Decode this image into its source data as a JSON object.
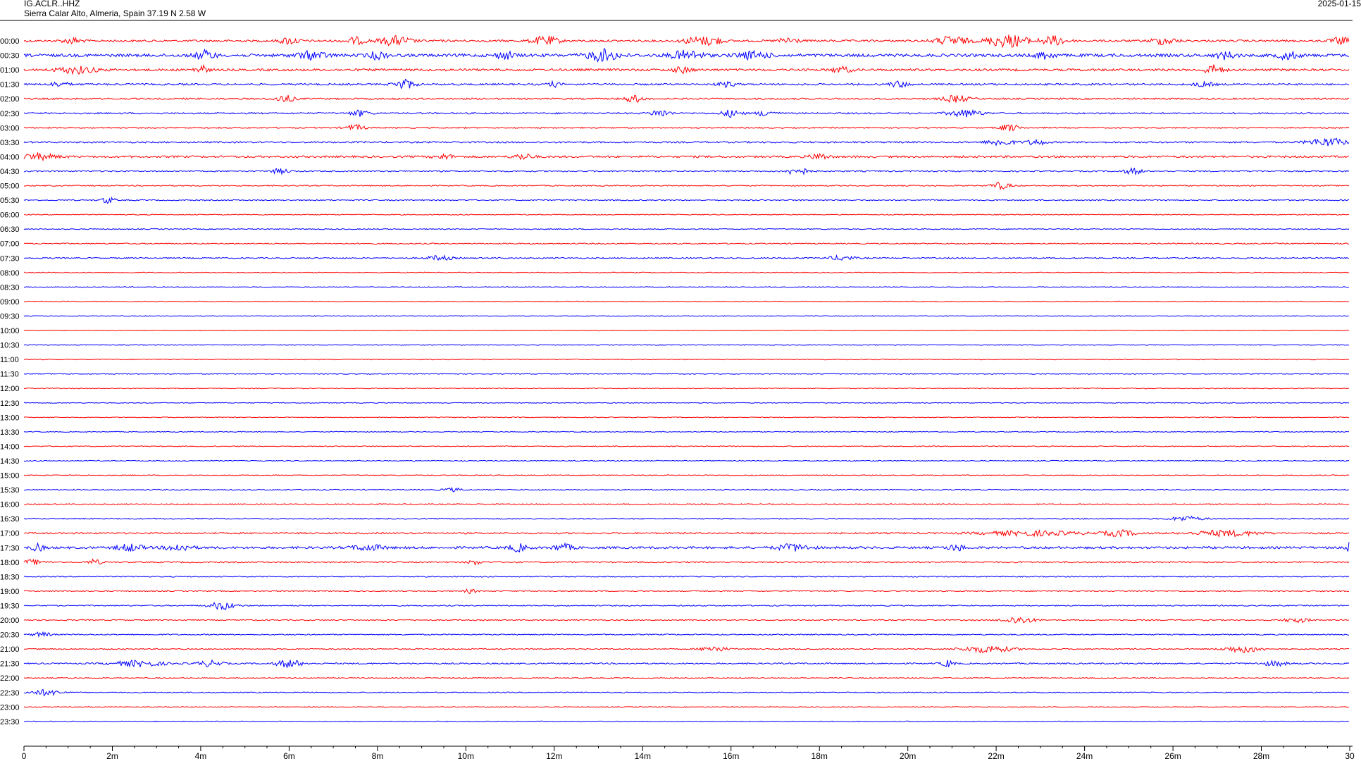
{
  "header": {
    "station": "IG.ACLR..HHZ",
    "location": "Sierra Calar Alto, Almeria, Spain  37.19 N 2.58 W",
    "date": "2025-01-15"
  },
  "colors": {
    "odd": "#ff0000",
    "even": "#0000ff",
    "border": "#000000"
  },
  "chart_data": {
    "type": "line",
    "title": "IG.ACLR..HHZ",
    "subtitle": "Sierra Calar Alto, Almeria, Spain  37.19 N 2.58 W",
    "xlabel": "",
    "ylabel": "",
    "xlim": [
      0,
      30
    ],
    "x_ticks": [
      "0",
      "2m",
      "4m",
      "6m",
      "8m",
      "10m",
      "12m",
      "14m",
      "16m",
      "18m",
      "20m",
      "22m",
      "24m",
      "26m",
      "28m",
      "30"
    ],
    "trace_labels": [
      "00:00",
      "00:30",
      "01:00",
      "01:30",
      "02:00",
      "02:30",
      "03:00",
      "03:30",
      "04:00",
      "04:30",
      "05:00",
      "05:30",
      "06:00",
      "06:30",
      "07:00",
      "07:30",
      "08:00",
      "08:30",
      "09:00",
      "09:30",
      "10:00",
      "10:30",
      "11:00",
      "11:30",
      "12:00",
      "12:30",
      "13:00",
      "13:30",
      "14:00",
      "14:30",
      "15:00",
      "15:30",
      "16:00",
      "16:30",
      "17:00",
      "17:30",
      "18:00",
      "18:30",
      "19:00",
      "19:30",
      "20:00",
      "20:30",
      "21:00",
      "21:30",
      "22:00",
      "22:30",
      "23:00",
      "23:30"
    ],
    "trace_colors": [
      "red",
      "blue"
    ],
    "noise_level": [
      0.9,
      1.3,
      1.0,
      0.8,
      0.7,
      0.7,
      0.6,
      0.7,
      0.9,
      0.6,
      0.5,
      0.5,
      0.4,
      0.45,
      0.5,
      0.55,
      0.35,
      0.35,
      0.35,
      0.35,
      0.35,
      0.35,
      0.35,
      0.35,
      0.35,
      0.35,
      0.35,
      0.35,
      0.4,
      0.4,
      0.4,
      0.45,
      0.5,
      0.5,
      0.7,
      1.0,
      0.6,
      0.45,
      0.45,
      0.5,
      0.5,
      0.5,
      0.5,
      0.6,
      0.4,
      0.45,
      0.35,
      0.35
    ],
    "events": [
      {
        "trace": 0,
        "t": 1.1,
        "a": 2.5,
        "w": 0.3
      },
      {
        "trace": 0,
        "t": 6.0,
        "a": 3,
        "w": 0.3
      },
      {
        "trace": 0,
        "t": 7.5,
        "a": 3,
        "w": 0.3
      },
      {
        "trace": 0,
        "t": 8.4,
        "a": 4,
        "w": 0.5
      },
      {
        "trace": 0,
        "t": 11.8,
        "a": 4,
        "w": 0.4
      },
      {
        "trace": 0,
        "t": 15.2,
        "a": 3,
        "w": 0.4
      },
      {
        "trace": 0,
        "t": 15.6,
        "a": 3.5,
        "w": 0.3
      },
      {
        "trace": 0,
        "t": 17.3,
        "a": 3,
        "w": 0.3
      },
      {
        "trace": 0,
        "t": 21.0,
        "a": 4,
        "w": 0.5
      },
      {
        "trace": 0,
        "t": 22.0,
        "a": 3,
        "w": 0.4
      },
      {
        "trace": 0,
        "t": 22.4,
        "a": 4.5,
        "w": 0.5
      },
      {
        "trace": 0,
        "t": 23.3,
        "a": 4,
        "w": 0.4
      },
      {
        "trace": 0,
        "t": 25.8,
        "a": 3,
        "w": 0.4
      },
      {
        "trace": 0,
        "t": 29.8,
        "a": 3,
        "w": 0.3
      },
      {
        "trace": 1,
        "t": 4.1,
        "a": 4,
        "w": 0.3
      },
      {
        "trace": 1,
        "t": 6.5,
        "a": 3,
        "w": 0.5
      },
      {
        "trace": 1,
        "t": 8.0,
        "a": 3,
        "w": 0.3
      },
      {
        "trace": 1,
        "t": 10.9,
        "a": 3,
        "w": 0.3
      },
      {
        "trace": 1,
        "t": 13.1,
        "a": 5,
        "w": 0.5
      },
      {
        "trace": 1,
        "t": 15.0,
        "a": 4,
        "w": 0.5
      },
      {
        "trace": 1,
        "t": 16.5,
        "a": 3,
        "w": 0.5
      },
      {
        "trace": 1,
        "t": 23.1,
        "a": 3,
        "w": 0.3
      },
      {
        "trace": 1,
        "t": 27.2,
        "a": 3,
        "w": 0.3
      },
      {
        "trace": 1,
        "t": 28.6,
        "a": 3.5,
        "w": 0.3
      },
      {
        "trace": 2,
        "t": 1.2,
        "a": 3,
        "w": 0.6
      },
      {
        "trace": 2,
        "t": 4.0,
        "a": 4,
        "w": 0.2
      },
      {
        "trace": 2,
        "t": 14.9,
        "a": 2.5,
        "w": 0.3
      },
      {
        "trace": 2,
        "t": 18.5,
        "a": 2.5,
        "w": 0.3
      },
      {
        "trace": 2,
        "t": 26.9,
        "a": 4,
        "w": 0.3
      },
      {
        "trace": 3,
        "t": 0.8,
        "a": 2,
        "w": 0.3
      },
      {
        "trace": 3,
        "t": 8.6,
        "a": 4.5,
        "w": 0.3
      },
      {
        "trace": 3,
        "t": 12.0,
        "a": 2,
        "w": 0.2
      },
      {
        "trace": 3,
        "t": 15.9,
        "a": 2,
        "w": 0.3
      },
      {
        "trace": 3,
        "t": 19.8,
        "a": 2.5,
        "w": 0.3
      },
      {
        "trace": 3,
        "t": 26.7,
        "a": 2,
        "w": 0.3
      },
      {
        "trace": 4,
        "t": 5.9,
        "a": 3,
        "w": 0.3
      },
      {
        "trace": 4,
        "t": 13.8,
        "a": 3,
        "w": 0.3
      },
      {
        "trace": 4,
        "t": 21.1,
        "a": 3,
        "w": 0.4
      },
      {
        "trace": 5,
        "t": 7.6,
        "a": 2.5,
        "w": 0.3
      },
      {
        "trace": 5,
        "t": 14.4,
        "a": 3,
        "w": 0.3
      },
      {
        "trace": 5,
        "t": 16.0,
        "a": 3,
        "w": 0.3
      },
      {
        "trace": 5,
        "t": 16.8,
        "a": 2.5,
        "w": 0.3
      },
      {
        "trace": 5,
        "t": 21.3,
        "a": 3,
        "w": 0.5
      },
      {
        "trace": 6,
        "t": 7.5,
        "a": 2.5,
        "w": 0.3
      },
      {
        "trace": 6,
        "t": 22.3,
        "a": 3,
        "w": 0.3
      },
      {
        "trace": 7,
        "t": 22.1,
        "a": 3,
        "w": 0.4
      },
      {
        "trace": 7,
        "t": 22.9,
        "a": 2.5,
        "w": 0.3
      },
      {
        "trace": 7,
        "t": 29.5,
        "a": 3.5,
        "w": 0.6
      },
      {
        "trace": 8,
        "t": 0.3,
        "a": 2.5,
        "w": 0.6
      },
      {
        "trace": 8,
        "t": 9.5,
        "a": 2,
        "w": 0.3
      },
      {
        "trace": 8,
        "t": 11.3,
        "a": 2.5,
        "w": 0.3
      },
      {
        "trace": 8,
        "t": 18.0,
        "a": 2.5,
        "w": 0.3
      },
      {
        "trace": 9,
        "t": 5.8,
        "a": 2,
        "w": 0.3
      },
      {
        "trace": 9,
        "t": 17.5,
        "a": 4,
        "w": 0.3
      },
      {
        "trace": 9,
        "t": 25.1,
        "a": 2.5,
        "w": 0.3
      },
      {
        "trace": 10,
        "t": 22.1,
        "a": 3,
        "w": 0.3
      },
      {
        "trace": 11,
        "t": 1.9,
        "a": 3,
        "w": 0.2
      },
      {
        "trace": 15,
        "t": 9.4,
        "a": 2,
        "w": 0.4
      },
      {
        "trace": 15,
        "t": 18.5,
        "a": 2,
        "w": 0.4
      },
      {
        "trace": 31,
        "t": 9.7,
        "a": 1.5,
        "w": 0.3
      },
      {
        "trace": 33,
        "t": 26.3,
        "a": 2,
        "w": 0.5
      },
      {
        "trace": 34,
        "t": 22.8,
        "a": 2,
        "w": 1.5
      },
      {
        "trace": 34,
        "t": 24.8,
        "a": 2.5,
        "w": 0.5
      },
      {
        "trace": 34,
        "t": 27.2,
        "a": 2.5,
        "w": 1.0
      },
      {
        "trace": 35,
        "t": 0.3,
        "a": 3,
        "w": 0.2
      },
      {
        "trace": 35,
        "t": 2.4,
        "a": 3,
        "w": 0.4
      },
      {
        "trace": 35,
        "t": 3.5,
        "a": 3,
        "w": 0.4
      },
      {
        "trace": 35,
        "t": 7.8,
        "a": 2.5,
        "w": 0.5
      },
      {
        "trace": 35,
        "t": 11.2,
        "a": 3,
        "w": 0.3
      },
      {
        "trace": 35,
        "t": 12.2,
        "a": 3,
        "w": 0.3
      },
      {
        "trace": 35,
        "t": 17.4,
        "a": 3,
        "w": 0.5
      },
      {
        "trace": 35,
        "t": 21.1,
        "a": 2.5,
        "w": 0.3
      },
      {
        "trace": 35,
        "t": 30.0,
        "a": 5,
        "w": 0.1
      },
      {
        "trace": 36,
        "t": 0.2,
        "a": 2,
        "w": 0.3
      },
      {
        "trace": 36,
        "t": 1.6,
        "a": 2.5,
        "w": 0.2
      },
      {
        "trace": 36,
        "t": 10.2,
        "a": 2,
        "w": 0.2
      },
      {
        "trace": 38,
        "t": 10.1,
        "a": 1.8,
        "w": 0.2
      },
      {
        "trace": 39,
        "t": 4.5,
        "a": 3.5,
        "w": 0.4
      },
      {
        "trace": 40,
        "t": 22.5,
        "a": 3,
        "w": 0.5
      },
      {
        "trace": 40,
        "t": 28.8,
        "a": 2,
        "w": 0.4
      },
      {
        "trace": 41,
        "t": 0.4,
        "a": 2,
        "w": 0.3
      },
      {
        "trace": 42,
        "t": 15.6,
        "a": 2.5,
        "w": 0.4
      },
      {
        "trace": 42,
        "t": 21.8,
        "a": 3,
        "w": 0.8
      },
      {
        "trace": 42,
        "t": 27.6,
        "a": 3,
        "w": 0.6
      },
      {
        "trace": 43,
        "t": 2.6,
        "a": 2.5,
        "w": 0.8
      },
      {
        "trace": 43,
        "t": 4.2,
        "a": 2.5,
        "w": 0.4
      },
      {
        "trace": 43,
        "t": 6.0,
        "a": 3.5,
        "w": 0.4
      },
      {
        "trace": 43,
        "t": 20.9,
        "a": 3,
        "w": 0.2
      },
      {
        "trace": 43,
        "t": 28.3,
        "a": 2,
        "w": 0.4
      },
      {
        "trace": 45,
        "t": 0.5,
        "a": 2.5,
        "w": 0.5
      }
    ]
  }
}
